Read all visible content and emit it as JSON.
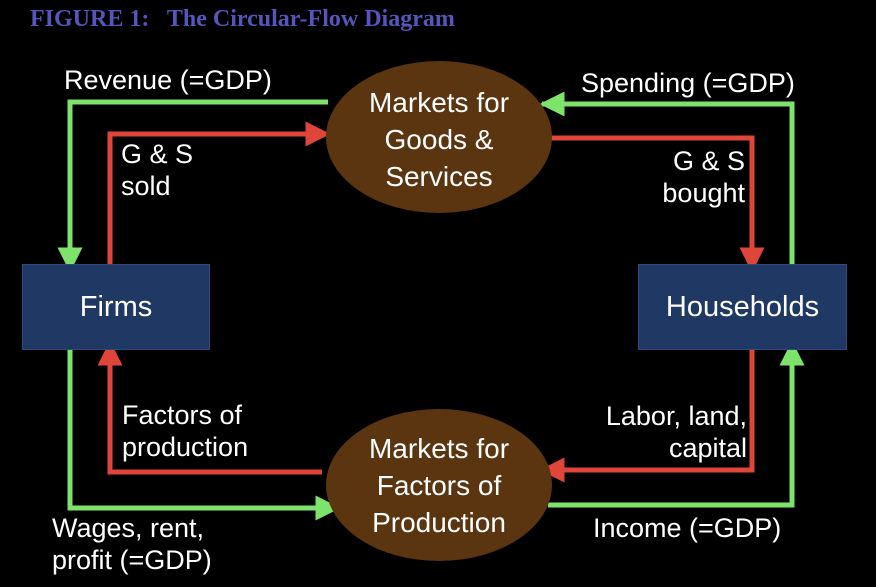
{
  "title": "FIGURE 1:   The Circular-Flow Diagram",
  "colors": {
    "background": "#000000",
    "title": "#5555bb",
    "money_flow": "#7ee36a",
    "goods_flow": "#e0453a",
    "market": "#5a3510",
    "agent_box": "#203864"
  },
  "nodes": {
    "goods_market": "Markets for\nGoods &\nServices",
    "factor_market": "Markets for\nFactors of\nProduction",
    "firms": "Firms",
    "households": "Households"
  },
  "flows": {
    "revenue": "Revenue (=GDP)",
    "gs_sold": "G & S\nsold",
    "spending": "Spending (=GDP)",
    "gs_bought": "G & S\nbought",
    "factors_of_production": "Factors of\nproduction",
    "labor_land_capital": "Labor, land,\ncapital",
    "wages_rent_profit": "Wages, rent,\nprofit (=GDP)",
    "income": "Income (=GDP)"
  }
}
